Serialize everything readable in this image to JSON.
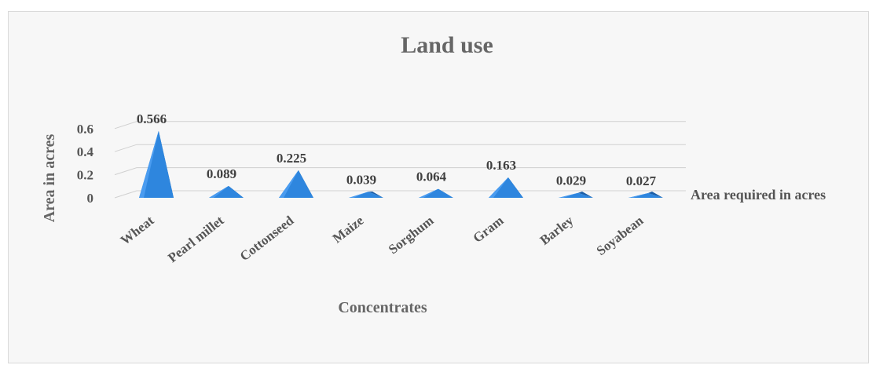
{
  "chart_data": {
    "type": "bar",
    "style": "3d-pyramid",
    "title": "Land use",
    "xlabel": "Concentrates",
    "ylabel": "Area in acres",
    "categories": [
      "Wheat",
      "Pearl millet",
      "Cottonseed",
      "Maize",
      "Sorghum",
      "Gram",
      "Barley",
      "Soyabean"
    ],
    "series": [
      {
        "name": "Area required in acres",
        "values": [
          0.566,
          0.089,
          0.225,
          0.039,
          0.064,
          0.163,
          0.029,
          0.027
        ],
        "labels": [
          "0.566",
          "0.089",
          "0.225",
          "0.039",
          "0.064",
          "0.163",
          "0.029",
          "0.027"
        ],
        "color": "#2e86de"
      }
    ],
    "ylim": [
      0,
      0.6
    ],
    "yticks": [
      0,
      0.2,
      0.4,
      0.6
    ],
    "yticklabels": [
      "0",
      "0.2",
      "0.4",
      "0.6"
    ],
    "grid": true,
    "legend": "right"
  }
}
